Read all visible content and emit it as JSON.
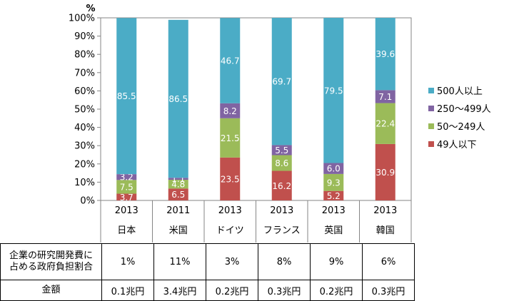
{
  "chart_data": {
    "type": "bar",
    "stacked": true,
    "percent_stacked": true,
    "unit": "%",
    "categories": [
      {
        "year": "2013",
        "country": "日本"
      },
      {
        "year": "2011",
        "country": "米国"
      },
      {
        "year": "2013",
        "country": "ドイツ"
      },
      {
        "year": "2013",
        "country": "フランス"
      },
      {
        "year": "2013",
        "country": "英国"
      },
      {
        "year": "2013",
        "country": "韓国"
      }
    ],
    "series": [
      {
        "name": "49人以下",
        "color": "#c0504d",
        "values": [
          3.7,
          6.5,
          23.5,
          16.2,
          5.2,
          30.9
        ]
      },
      {
        "name": "50～249人",
        "color": "#9bbb59",
        "values": [
          7.5,
          4.8,
          21.5,
          8.6,
          9.3,
          22.4
        ]
      },
      {
        "name": "250～499人",
        "color": "#8064a2",
        "values": [
          3.2,
          1.1,
          8.2,
          5.5,
          6.0,
          7.1
        ]
      },
      {
        "name": "500人以上",
        "color": "#4bacc6",
        "values": [
          85.5,
          86.5,
          46.7,
          69.7,
          79.5,
          39.6
        ]
      }
    ],
    "yticks": [
      "0%",
      "10%",
      "20%",
      "30%",
      "40%",
      "50%",
      "60%",
      "70%",
      "80%",
      "90%",
      "100%"
    ],
    "ylim": [
      0,
      100
    ],
    "legend_position": "right",
    "legend_order": [
      "500人以上",
      "250～499人",
      "50～249人",
      "49人以下"
    ]
  },
  "table": {
    "row1_header_line1": "企業の研究開発費に",
    "row1_header_line2": "占める政府負担割合",
    "row1_values": [
      "1%",
      "11%",
      "3%",
      "8%",
      "9%",
      "6%"
    ],
    "row2_header": "金額",
    "row2_values": [
      "0.1兆円",
      "3.4兆円",
      "0.2兆円",
      "0.3兆円",
      "0.2兆円",
      "0.3兆円"
    ]
  }
}
